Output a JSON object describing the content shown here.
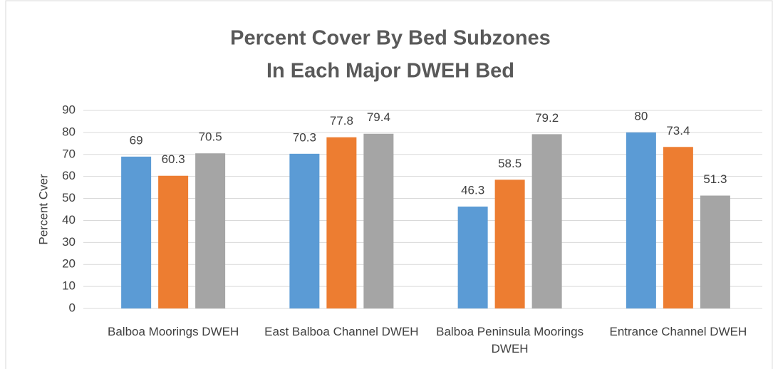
{
  "chart_data": {
    "type": "bar",
    "title": [
      "Percent Cover By Bed Subzones",
      "In Each Major DWEH Bed"
    ],
    "y_label": "Percent Cver",
    "categories": [
      "Balboa Moorings DWEH",
      "East Balboa Channel DWEH",
      "Balboa Peninsula Moorings DWEH",
      "Entrance Channel DWEH"
    ],
    "series": [
      {
        "color": "#5b9bd5",
        "values": [
          69,
          70.3,
          46.3,
          80
        ]
      },
      {
        "color": "#ed7d31",
        "values": [
          60.3,
          77.8,
          58.5,
          73.4
        ]
      },
      {
        "color": "#a5a5a5",
        "values": [
          70.5,
          79.4,
          79.2,
          51.3
        ]
      }
    ],
    "ylim": [
      0,
      90
    ],
    "yticks": [
      0,
      10,
      20,
      30,
      40,
      50,
      60,
      70,
      80,
      90
    ],
    "grid": true
  }
}
